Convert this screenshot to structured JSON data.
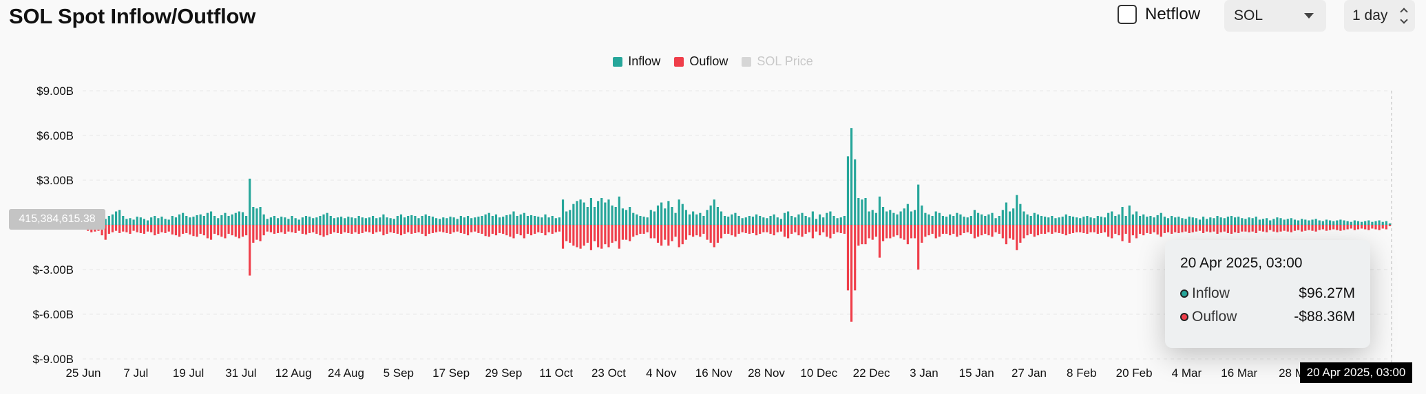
{
  "header": {
    "title": "SOL Spot Inflow/Outflow",
    "netflow_label": "Netflow",
    "netflow_checked": false,
    "coin_selected": "SOL",
    "interval_selected": "1 day"
  },
  "legend": [
    {
      "label": "Inflow",
      "color": "#26a69a",
      "active": true
    },
    {
      "label": "Ouflow",
      "color": "#ef3e4a",
      "active": true
    },
    {
      "label": "SOL Price",
      "color": "#c8c8c8",
      "active": false
    }
  ],
  "crosshair": {
    "y_label": "415,384,615.38",
    "x_label": "20 Apr 2025, 03:00"
  },
  "tooltip": {
    "date": "20 Apr 2025, 03:00",
    "rows": [
      {
        "label": "Inflow",
        "value": "$96.27M",
        "color": "#26a69a"
      },
      {
        "label": "Ouflow",
        "value": "-$88.36M",
        "color": "#ef3e4a"
      }
    ]
  },
  "chart_data": {
    "type": "bar",
    "stacked_diverging": true,
    "yticks": [
      "$9.00B",
      "$6.00B",
      "$3.00B",
      "$-3.00B",
      "$-6.00B",
      "$-9.00B"
    ],
    "ytick_values": [
      9,
      6,
      3,
      -3,
      -6,
      -9
    ],
    "ylim": [
      -9,
      9
    ],
    "yunit": "B",
    "xticks": [
      "25 Jun",
      "7 Jul",
      "19 Jul",
      "31 Jul",
      "12 Aug",
      "24 Aug",
      "5 Sep",
      "17 Sep",
      "29 Sep",
      "11 Oct",
      "23 Oct",
      "4 Nov",
      "16 Nov",
      "28 Nov",
      "10 Dec",
      "22 Dec",
      "3 Jan",
      "15 Jan",
      "27 Jan",
      "8 Feb",
      "20 Feb",
      "4 Mar",
      "16 Mar",
      "28 M"
    ],
    "grid": true,
    "series": [
      {
        "name": "Inflow",
        "color": "#26a69a",
        "values": [
          0.25,
          0.4,
          0.45,
          0.35,
          0.55,
          0.5,
          0.4,
          0.6,
          0.7,
          0.9,
          1.0,
          0.6,
          0.4,
          0.45,
          0.35,
          0.55,
          0.5,
          0.4,
          0.3,
          0.5,
          0.6,
          0.45,
          0.55,
          0.4,
          0.35,
          0.6,
          0.5,
          0.7,
          0.8,
          0.6,
          0.5,
          0.55,
          0.65,
          0.7,
          0.6,
          0.8,
          0.9,
          0.6,
          0.45,
          0.65,
          0.8,
          0.6,
          0.7,
          0.8,
          0.9,
          0.85,
          0.6,
          3.1,
          1.2,
          1.1,
          1.2,
          0.7,
          0.4,
          0.5,
          0.6,
          0.45,
          0.55,
          0.5,
          0.4,
          0.6,
          0.45,
          0.35,
          0.5,
          0.6,
          0.55,
          0.45,
          0.5,
          0.6,
          0.7,
          0.8,
          0.6,
          0.45,
          0.5,
          0.55,
          0.45,
          0.55,
          0.5,
          0.45,
          0.6,
          0.5,
          0.45,
          0.5,
          0.6,
          0.45,
          0.5,
          0.7,
          0.5,
          0.45,
          0.4,
          0.6,
          0.7,
          0.5,
          0.6,
          0.65,
          0.6,
          0.45,
          0.6,
          0.7,
          0.6,
          0.55,
          0.45,
          0.4,
          0.5,
          0.45,
          0.55,
          0.5,
          0.4,
          0.6,
          0.5,
          0.6,
          0.45,
          0.5,
          0.55,
          0.6,
          0.7,
          0.8,
          0.6,
          0.7,
          0.5,
          0.55,
          0.65,
          0.7,
          0.9,
          0.6,
          0.7,
          0.8,
          0.6,
          0.65,
          0.6,
          0.55,
          0.5,
          0.7,
          0.5,
          0.6,
          0.45,
          0.5,
          1.7,
          0.9,
          1.0,
          1.4,
          1.6,
          1.7,
          1.5,
          1.2,
          1.8,
          1.2,
          1.6,
          1.8,
          1.5,
          1.7,
          1.3,
          1.2,
          1.9,
          1.1,
          1.0,
          1.2,
          0.8,
          0.7,
          0.6,
          0.55,
          0.5,
          1.0,
          0.9,
          1.3,
          1.5,
          1.1,
          1.6,
          1.2,
          0.8,
          1.7,
          1.4,
          1.0,
          0.7,
          0.9,
          0.7,
          0.8,
          0.6,
          1.0,
          1.3,
          1.7,
          1.2,
          0.9,
          0.6,
          0.55,
          0.7,
          0.8,
          0.6,
          0.45,
          0.5,
          0.6,
          0.55,
          0.7,
          0.6,
          0.5,
          0.45,
          0.6,
          0.7,
          0.5,
          0.4,
          0.8,
          0.9,
          0.6,
          0.5,
          0.7,
          0.8,
          0.6,
          0.5,
          0.9,
          0.4,
          0.7,
          0.5,
          0.8,
          0.9,
          0.6,
          0.45,
          0.5,
          0.6,
          4.6,
          6.5,
          4.4,
          1.8,
          1.7,
          1.8,
          0.9,
          1.0,
          0.8,
          1.9,
          1.2,
          0.9,
          1.0,
          0.8,
          0.7,
          0.9,
          1.1,
          1.4,
          0.9,
          1.0,
          2.7,
          1.3,
          0.8,
          0.7,
          0.6,
          0.9,
          0.8,
          0.6,
          0.55,
          0.7,
          0.6,
          0.8,
          0.7,
          0.55,
          0.5,
          0.6,
          1.0,
          0.8,
          0.7,
          0.6,
          0.7,
          0.8,
          0.45,
          0.6,
          1.0,
          1.5,
          0.9,
          1.1,
          2.0,
          1.4,
          0.9,
          0.7,
          0.6,
          0.8,
          0.7,
          0.6,
          0.55,
          0.5,
          0.6,
          0.45,
          0.5,
          0.55,
          0.7,
          0.6,
          0.55,
          0.5,
          0.45,
          0.55,
          0.6,
          0.5,
          0.45,
          0.6,
          0.55,
          0.5,
          0.8,
          0.9,
          0.6,
          0.7,
          1.2,
          0.6,
          1.3,
          0.7,
          0.9,
          0.6,
          0.7,
          0.55,
          0.6,
          0.5,
          0.65,
          0.8,
          0.55,
          0.45,
          0.6,
          0.5,
          0.55,
          0.45,
          0.4,
          0.55,
          0.5,
          0.45,
          0.35,
          0.55,
          0.4,
          0.5,
          0.45,
          0.6,
          0.5,
          0.45,
          0.55,
          0.6,
          0.5,
          0.55,
          0.45,
          0.4,
          0.5,
          0.45,
          0.55,
          0.35,
          0.4,
          0.45,
          0.3,
          0.4,
          0.5,
          0.45,
          0.35,
          0.4,
          0.45,
          0.35,
          0.3,
          0.4,
          0.35,
          0.3,
          0.35,
          0.4,
          0.3,
          0.25,
          0.35,
          0.3,
          0.25,
          0.3,
          0.35,
          0.3,
          0.25,
          0.2,
          0.3,
          0.25,
          0.2,
          0.25,
          0.3,
          0.2,
          0.25,
          0.3,
          0.2,
          0.25,
          0.0963
        ],
        "values_note": "billions USD"
      },
      {
        "name": "Ouflow",
        "color": "#ef3e4a",
        "values": [
          -0.3,
          -0.4,
          -0.5,
          -0.45,
          -0.4,
          -0.7,
          -1.0,
          -0.6,
          -0.5,
          -0.4,
          -0.55,
          -0.45,
          -0.5,
          -0.6,
          -0.4,
          -0.5,
          -0.55,
          -0.6,
          -0.45,
          -0.5,
          -0.7,
          -0.6,
          -0.5,
          -0.55,
          -0.45,
          -0.65,
          -0.7,
          -0.8,
          -0.6,
          -0.55,
          -0.65,
          -0.75,
          -0.8,
          -0.6,
          -0.7,
          -0.9,
          -1.0,
          -0.6,
          -0.7,
          -0.8,
          -0.9,
          -0.6,
          -0.7,
          -0.8,
          -0.9,
          -0.8,
          -0.7,
          -3.4,
          -1.2,
          -1.0,
          -1.1,
          -0.7,
          -0.45,
          -0.5,
          -0.6,
          -0.55,
          -0.5,
          -0.6,
          -0.45,
          -0.5,
          -0.55,
          -0.4,
          -0.6,
          -0.65,
          -0.55,
          -0.5,
          -0.6,
          -0.7,
          -0.8,
          -0.7,
          -0.6,
          -0.5,
          -0.55,
          -0.6,
          -0.5,
          -0.55,
          -0.6,
          -0.5,
          -0.6,
          -0.55,
          -0.45,
          -0.5,
          -0.6,
          -0.5,
          -0.45,
          -0.7,
          -0.6,
          -0.5,
          -0.55,
          -0.6,
          -0.7,
          -0.6,
          -0.5,
          -0.6,
          -0.55,
          -0.5,
          -0.6,
          -0.75,
          -0.6,
          -0.55,
          -0.5,
          -0.45,
          -0.5,
          -0.55,
          -0.6,
          -0.5,
          -0.45,
          -0.55,
          -0.6,
          -0.7,
          -0.5,
          -0.45,
          -0.55,
          -0.6,
          -0.75,
          -0.8,
          -0.6,
          -0.7,
          -0.55,
          -0.6,
          -0.7,
          -0.8,
          -0.9,
          -0.6,
          -0.7,
          -0.9,
          -0.6,
          -0.7,
          -0.6,
          -0.5,
          -0.55,
          -0.7,
          -0.5,
          -0.6,
          -0.5,
          -0.45,
          -1.6,
          -1.1,
          -1.2,
          -1.4,
          -1.5,
          -1.6,
          -1.4,
          -1.2,
          -1.7,
          -1.1,
          -1.5,
          -1.6,
          -1.3,
          -1.5,
          -1.2,
          -1.1,
          -1.6,
          -1.0,
          -1.0,
          -1.1,
          -0.8,
          -0.7,
          -0.6,
          -0.6,
          -0.5,
          -0.9,
          -0.9,
          -1.2,
          -1.4,
          -1.0,
          -1.4,
          -1.1,
          -0.8,
          -1.5,
          -1.3,
          -1.0,
          -0.7,
          -0.8,
          -0.7,
          -0.8,
          -0.6,
          -1.0,
          -1.2,
          -1.5,
          -1.2,
          -0.9,
          -0.6,
          -0.6,
          -0.7,
          -0.8,
          -0.6,
          -0.5,
          -0.55,
          -0.6,
          -0.55,
          -0.7,
          -0.6,
          -0.5,
          -0.5,
          -0.6,
          -0.7,
          -0.5,
          -0.45,
          -0.8,
          -0.9,
          -0.6,
          -0.5,
          -0.7,
          -0.8,
          -0.6,
          -0.5,
          -0.9,
          -0.45,
          -0.7,
          -0.5,
          -0.8,
          -0.9,
          -0.6,
          -0.5,
          -0.55,
          -0.6,
          -4.4,
          -6.5,
          -4.4,
          -1.4,
          -1.3,
          -1.3,
          -0.9,
          -1.0,
          -0.8,
          -2.2,
          -1.1,
          -0.9,
          -0.9,
          -0.8,
          -0.7,
          -0.9,
          -1.0,
          -1.3,
          -0.9,
          -0.9,
          -3.0,
          -1.2,
          -0.8,
          -0.7,
          -0.6,
          -0.9,
          -0.8,
          -0.6,
          -0.6,
          -0.7,
          -0.6,
          -0.8,
          -0.7,
          -0.55,
          -0.5,
          -0.6,
          -0.9,
          -0.8,
          -0.7,
          -0.6,
          -0.7,
          -0.8,
          -0.5,
          -0.6,
          -0.9,
          -1.3,
          -0.9,
          -1.0,
          -1.7,
          -1.2,
          -0.9,
          -0.7,
          -0.6,
          -0.8,
          -0.7,
          -0.6,
          -0.6,
          -0.5,
          -0.6,
          -0.5,
          -0.55,
          -0.6,
          -0.7,
          -0.6,
          -0.55,
          -0.5,
          -0.5,
          -0.55,
          -0.6,
          -0.5,
          -0.5,
          -0.6,
          -0.55,
          -0.5,
          -0.8,
          -0.9,
          -0.6,
          -0.7,
          -1.1,
          -0.6,
          -1.2,
          -0.7,
          -0.9,
          -0.6,
          -0.7,
          -0.55,
          -0.6,
          -0.5,
          -0.65,
          -0.8,
          -0.55,
          -0.5,
          -0.6,
          -0.5,
          -0.55,
          -0.5,
          -0.45,
          -0.55,
          -0.5,
          -0.45,
          -0.4,
          -0.55,
          -0.45,
          -0.5,
          -0.45,
          -0.6,
          -0.5,
          -0.45,
          -0.55,
          -0.6,
          -0.5,
          -0.55,
          -0.45,
          -0.45,
          -0.5,
          -0.45,
          -0.55,
          -0.4,
          -0.45,
          -0.5,
          -0.35,
          -0.45,
          -0.5,
          -0.45,
          -0.4,
          -0.45,
          -0.5,
          -0.4,
          -0.35,
          -0.45,
          -0.4,
          -0.35,
          -0.4,
          -0.45,
          -0.35,
          -0.3,
          -0.4,
          -0.35,
          -0.3,
          -0.35,
          -0.4,
          -0.35,
          -0.3,
          -0.25,
          -0.35,
          -0.3,
          -0.25,
          -0.3,
          -0.35,
          -0.25,
          -0.3,
          -0.35,
          -0.25,
          -0.3,
          -0.08836
        ]
      }
    ]
  }
}
